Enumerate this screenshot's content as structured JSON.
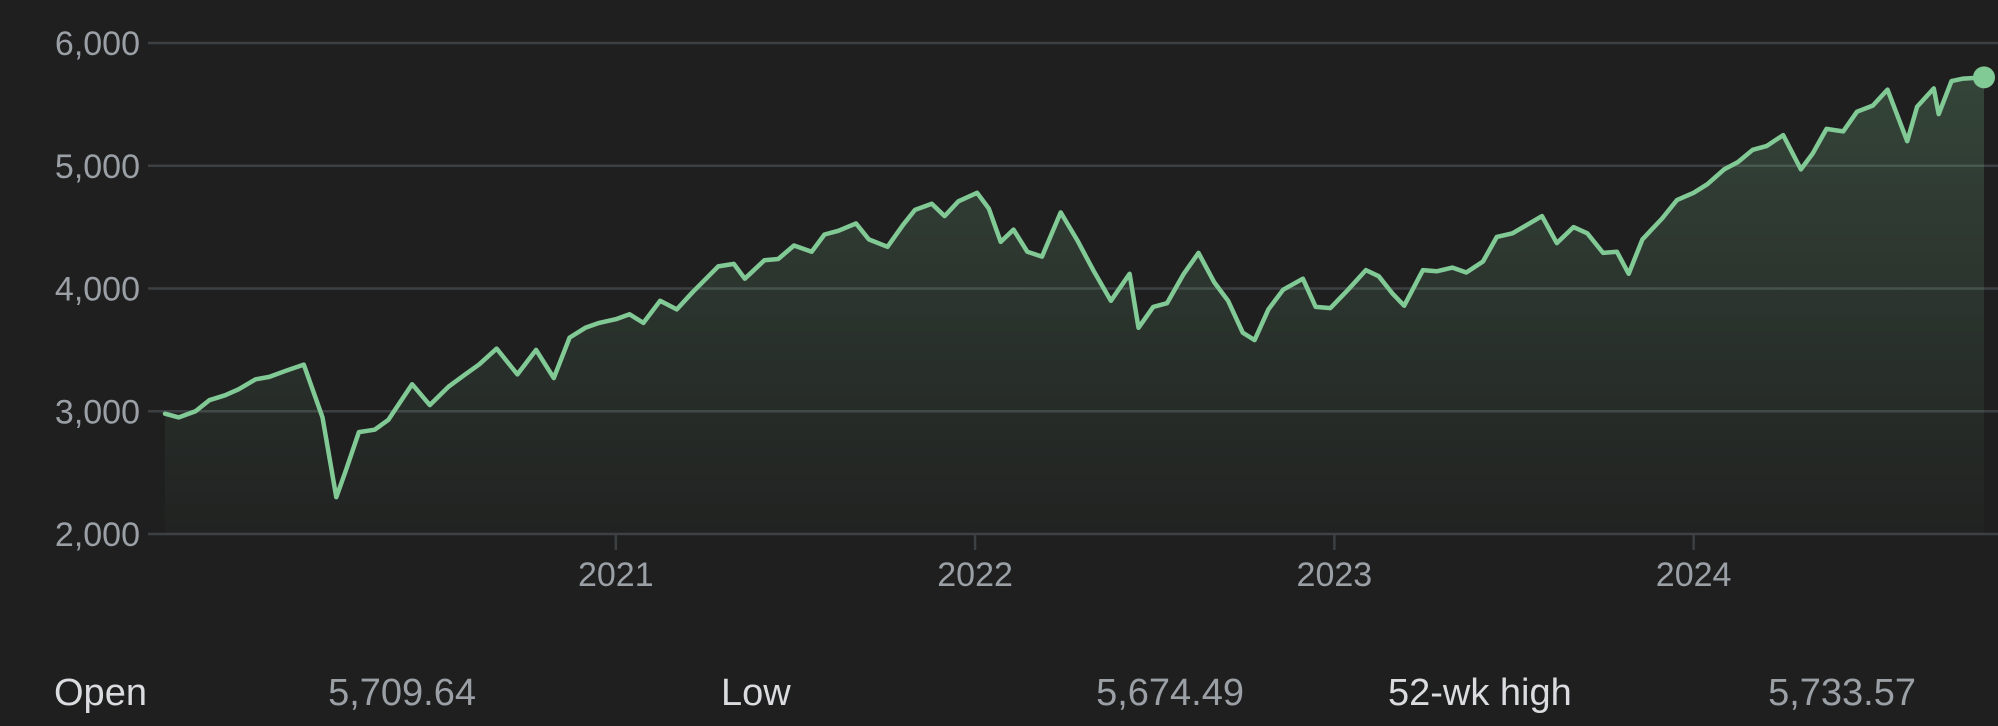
{
  "chart_data": {
    "type": "area",
    "ylim": [
      2000,
      6000
    ],
    "yticks": [
      {
        "value": 2000,
        "label": "2,000"
      },
      {
        "value": 3000,
        "label": "3,000"
      },
      {
        "value": 4000,
        "label": "4,000"
      },
      {
        "value": 5000,
        "label": "5,000"
      },
      {
        "value": 6000,
        "label": "6,000"
      }
    ],
    "xlim": [
      "2019-10-01",
      "2024-10-22"
    ],
    "xticks": [
      {
        "value": "2021-01-01",
        "label": "2021"
      },
      {
        "value": "2022-01-01",
        "label": "2022"
      },
      {
        "value": "2023-01-01",
        "label": "2023"
      },
      {
        "value": "2024-01-01",
        "label": "2024"
      }
    ],
    "x": [
      "2019-10-01",
      "2019-10-15",
      "2019-11-01",
      "2019-11-15",
      "2019-12-01",
      "2019-12-15",
      "2020-01-01",
      "2020-01-15",
      "2020-02-01",
      "2020-02-19",
      "2020-03-09",
      "2020-03-23",
      "2020-04-01",
      "2020-04-15",
      "2020-05-01",
      "2020-05-15",
      "2020-06-08",
      "2020-06-26",
      "2020-07-15",
      "2020-08-01",
      "2020-08-15",
      "2020-09-02",
      "2020-09-23",
      "2020-10-12",
      "2020-10-30",
      "2020-11-15",
      "2020-12-01",
      "2020-12-15",
      "2021-01-01",
      "2021-01-15",
      "2021-01-29",
      "2021-02-15",
      "2021-03-04",
      "2021-03-20",
      "2021-04-15",
      "2021-05-01",
      "2021-05-12",
      "2021-06-01",
      "2021-06-15",
      "2021-07-01",
      "2021-07-19",
      "2021-08-01",
      "2021-08-15",
      "2021-09-02",
      "2021-09-15",
      "2021-10-04",
      "2021-10-20",
      "2021-11-01",
      "2021-11-18",
      "2021-12-01",
      "2021-12-15",
      "2022-01-03",
      "2022-01-15",
      "2022-01-27",
      "2022-02-09",
      "2022-02-23",
      "2022-03-10",
      "2022-03-29",
      "2022-04-15",
      "2022-05-01",
      "2022-05-19",
      "2022-06-07",
      "2022-06-16",
      "2022-07-01",
      "2022-07-15",
      "2022-08-01",
      "2022-08-16",
      "2022-09-01",
      "2022-09-15",
      "2022-09-30",
      "2022-10-12",
      "2022-10-26",
      "2022-11-10",
      "2022-11-30",
      "2022-12-13",
      "2022-12-28",
      "2023-01-15",
      "2023-02-02",
      "2023-02-15",
      "2023-03-01",
      "2023-03-13",
      "2023-04-01",
      "2023-04-15",
      "2023-05-01",
      "2023-05-15",
      "2023-06-01",
      "2023-06-15",
      "2023-07-01",
      "2023-07-31",
      "2023-08-15",
      "2023-09-01",
      "2023-09-15",
      "2023-10-01",
      "2023-10-15",
      "2023-10-27",
      "2023-11-10",
      "2023-11-30",
      "2023-12-15",
      "2024-01-01",
      "2024-01-15",
      "2024-02-01",
      "2024-02-15",
      "2024-03-01",
      "2024-03-15",
      "2024-04-01",
      "2024-04-19",
      "2024-05-01",
      "2024-05-15",
      "2024-06-01",
      "2024-06-15",
      "2024-07-01",
      "2024-07-16",
      "2024-08-05",
      "2024-08-15",
      "2024-09-01",
      "2024-09-06",
      "2024-09-19",
      "2024-10-01",
      "2024-10-22"
    ],
    "series": [
      {
        "values": [
          2980,
          2950,
          3000,
          3090,
          3130,
          3180,
          3260,
          3280,
          3330,
          3380,
          2950,
          2300,
          2500,
          2830,
          2850,
          2930,
          3220,
          3050,
          3200,
          3300,
          3380,
          3510,
          3300,
          3500,
          3270,
          3600,
          3680,
          3720,
          3750,
          3790,
          3720,
          3900,
          3830,
          3970,
          4180,
          4200,
          4080,
          4230,
          4240,
          4350,
          4300,
          4440,
          4470,
          4530,
          4400,
          4340,
          4520,
          4640,
          4690,
          4590,
          4710,
          4780,
          4650,
          4380,
          4480,
          4300,
          4260,
          4620,
          4390,
          4150,
          3900,
          4120,
          3680,
          3850,
          3880,
          4120,
          4290,
          4050,
          3900,
          3640,
          3580,
          3830,
          3990,
          4080,
          3850,
          3840,
          3990,
          4150,
          4100,
          3960,
          3860,
          4150,
          4140,
          4170,
          4130,
          4220,
          4420,
          4450,
          4590,
          4370,
          4500,
          4450,
          4290,
          4300,
          4120,
          4400,
          4570,
          4720,
          4780,
          4850,
          4970,
          5030,
          5130,
          5160,
          5250,
          4970,
          5100,
          5300,
          5280,
          5440,
          5490,
          5620,
          5200,
          5480,
          5630,
          5420,
          5690,
          5710,
          5720
        ]
      }
    ]
  },
  "stats": [
    {
      "label": "Open",
      "value": "5,709.64"
    },
    {
      "label": "Low",
      "value": "5,674.49"
    },
    {
      "label": "52-wk high",
      "value": "5,733.57"
    }
  ],
  "colors": {
    "line": "#81c995",
    "grid": "#3c4043",
    "text": "#9aa0a6",
    "background": "#1f1f1f"
  }
}
